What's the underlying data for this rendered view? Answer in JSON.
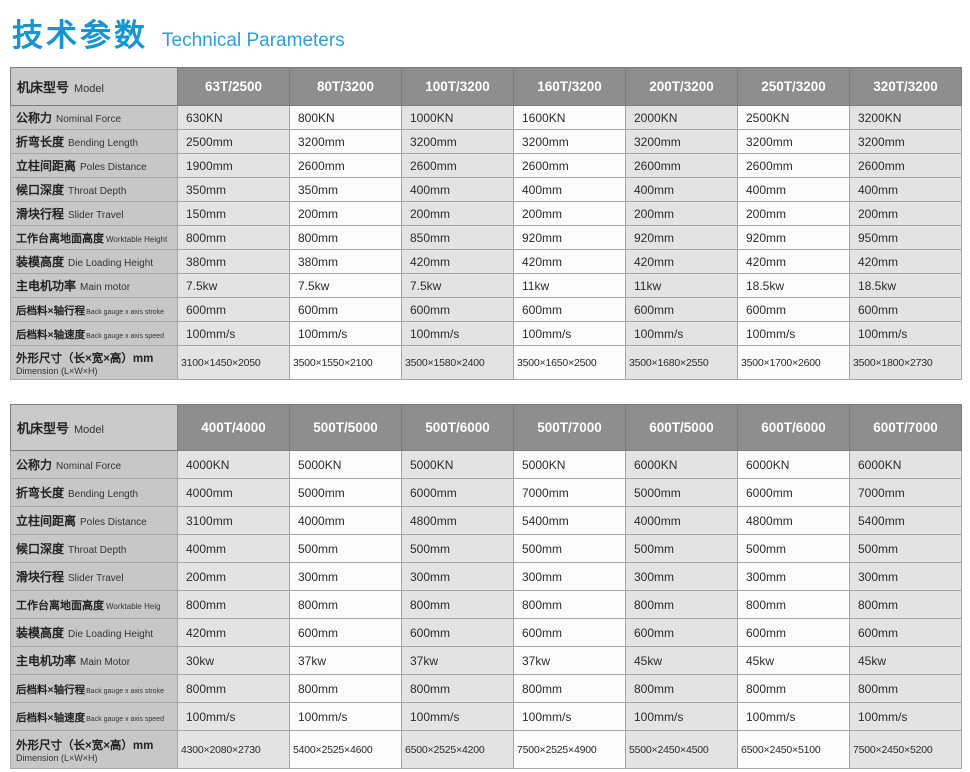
{
  "title": {
    "zh": "技术参数",
    "en": "Technical Parameters"
  },
  "colors": {
    "title_blue": "#1695d2",
    "header_bg": "#8e8e8e",
    "header_text": "#ffffff",
    "label_column_bg": "#c7c7c7",
    "cell_shaded_bg": "#e3e3e3",
    "cell_light_bg": "#fbfbfb",
    "grid_border": "#a6a6a6"
  },
  "tables": [
    {
      "model_header": {
        "zh": "机床型号",
        "en": "Model"
      },
      "columns": [
        "63T/2500",
        "80T/3200",
        "100T/3200",
        "160T/3200",
        "200T/3200",
        "250T/3200",
        "320T/3200"
      ],
      "rows": [
        {
          "label_zh": "公称力",
          "label_en": "Nominal Force",
          "values": [
            "630KN",
            "800KN",
            "1000KN",
            "1600KN",
            "2000KN",
            "2500KN",
            "3200KN"
          ]
        },
        {
          "label_zh": "折弯长度",
          "label_en": "Bending Length",
          "values": [
            "2500mm",
            "3200mm",
            "3200mm",
            "3200mm",
            "3200mm",
            "3200mm",
            "3200mm"
          ]
        },
        {
          "label_zh": "立柱间距离",
          "label_en": "Poles Distance",
          "values": [
            "1900mm",
            "2600mm",
            "2600mm",
            "2600mm",
            "2600mm",
            "2600mm",
            "2600mm"
          ]
        },
        {
          "label_zh": "候口深度",
          "label_en": "Throat Depth",
          "values": [
            "350mm",
            "350mm",
            "400mm",
            "400mm",
            "400mm",
            "400mm",
            "400mm"
          ]
        },
        {
          "label_zh": "滑块行程",
          "label_en": "Slider Travel",
          "values": [
            "150mm",
            "200mm",
            "200mm",
            "200mm",
            "200mm",
            "200mm",
            "200mm"
          ]
        },
        {
          "label_zh": "工作台离地面高度",
          "label_en": "Worktable Height",
          "values": [
            "800mm",
            "800mm",
            "850mm",
            "920mm",
            "920mm",
            "920mm",
            "950mm"
          ]
        },
        {
          "label_zh": "装模高度",
          "label_en": "Die Loading Height",
          "values": [
            "380mm",
            "380mm",
            "420mm",
            "420mm",
            "420mm",
            "420mm",
            "420mm"
          ]
        },
        {
          "label_zh": "主电机功率",
          "label_en": "Main motor",
          "values": [
            "7.5kw",
            "7.5kw",
            "7.5kw",
            "11kw",
            "11kw",
            "18.5kw",
            "18.5kw"
          ]
        },
        {
          "label_zh": "后档料×轴行程",
          "label_en": "Back gauge x axis stroke",
          "values": [
            "600mm",
            "600mm",
            "600mm",
            "600mm",
            "600mm",
            "600mm",
            "600mm"
          ]
        },
        {
          "label_zh": "后档料×轴速度",
          "label_en": "Back gauge x axis speed",
          "values": [
            "100mm/s",
            "100mm/s",
            "100mm/s",
            "100mm/s",
            "100mm/s",
            "100mm/s",
            "100mm/s"
          ]
        },
        {
          "label_zh": "外形尺寸（长×宽×高）mm",
          "label_en": "Dimension (L×W×H)",
          "stacked": true,
          "values": [
            "3100×1450×2050",
            "3500×1550×2100",
            "3500×1580×2400",
            "3500×1650×2500",
            "3500×1680×2550",
            "3500×1700×2600",
            "3500×1800×2730"
          ]
        }
      ]
    },
    {
      "model_header": {
        "zh": "机床型号",
        "en": "Model"
      },
      "columns": [
        "400T/4000",
        "500T/5000",
        "500T/6000",
        "500T/7000",
        "600T/5000",
        "600T/6000",
        "600T/7000"
      ],
      "rows": [
        {
          "label_zh": "公称力",
          "label_en": "Nominal Force",
          "values": [
            "4000KN",
            "5000KN",
            "5000KN",
            "5000KN",
            "6000KN",
            "6000KN",
            "6000KN"
          ]
        },
        {
          "label_zh": "折弯长度",
          "label_en": "Bending Length",
          "values": [
            "4000mm",
            "5000mm",
            "6000mm",
            "7000mm",
            "5000mm",
            "6000mm",
            "7000mm"
          ]
        },
        {
          "label_zh": "立柱间距离",
          "label_en": "Poles Distance",
          "values": [
            "3100mm",
            "4000mm",
            "4800mm",
            "5400mm",
            "4000mm",
            "4800mm",
            "5400mm"
          ]
        },
        {
          "label_zh": "候口深度",
          "label_en": "Throat Depth",
          "values": [
            "400mm",
            "500mm",
            "500mm",
            "500mm",
            "500mm",
            "500mm",
            "500mm"
          ]
        },
        {
          "label_zh": "滑块行程",
          "label_en": "Slider Travel",
          "values": [
            "200mm",
            "300mm",
            "300mm",
            "300mm",
            "300mm",
            "300mm",
            "300mm"
          ]
        },
        {
          "label_zh": "工作台离地面高度",
          "label_en": "Worktable Heig",
          "values": [
            "800mm",
            "800mm",
            "800mm",
            "800mm",
            "800mm",
            "800mm",
            "800mm"
          ]
        },
        {
          "label_zh": "装模高度",
          "label_en": "Die Loading Height",
          "values": [
            "420mm",
            "600mm",
            "600mm",
            "600mm",
            "600mm",
            "600mm",
            "600mm"
          ]
        },
        {
          "label_zh": "主电机功率",
          "label_en": "Main Motor",
          "values": [
            "30kw",
            "37kw",
            "37kw",
            "37kw",
            "45kw",
            "45kw",
            "45kw"
          ]
        },
        {
          "label_zh": "后档料×轴行程",
          "label_en": "Back gauge x axis stroke",
          "values": [
            "800mm",
            "800mm",
            "800mm",
            "800mm",
            "800mm",
            "800mm",
            "800mm"
          ]
        },
        {
          "label_zh": "后档料×轴速度",
          "label_en": "Back gauge x axis speed",
          "values": [
            "100mm/s",
            "100mm/s",
            "100mm/s",
            "100mm/s",
            "100mm/s",
            "100mm/s",
            "100mm/s"
          ]
        },
        {
          "label_zh": "外形尺寸（长×宽×高）mm",
          "label_en": "Dimension (L×W×H)",
          "stacked": true,
          "values": [
            "4300×2080×2730",
            "5400×2525×4600",
            "6500×2525×4200",
            "7500×2525×4900",
            "5500×2450×4500",
            "6500×2450×5100",
            "7500×2450×5200"
          ]
        }
      ]
    }
  ]
}
